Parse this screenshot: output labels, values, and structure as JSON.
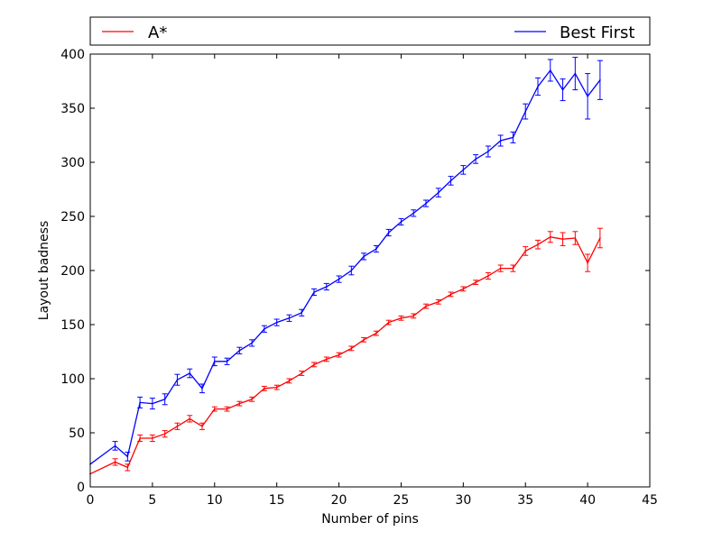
{
  "chart_data": {
    "type": "line",
    "title": "",
    "xlabel": "Number of pins",
    "ylabel": "Layout badness",
    "xlim": [
      0,
      45
    ],
    "ylim": [
      0,
      400
    ],
    "xticks": [
      "0",
      "5",
      "10",
      "15",
      "20",
      "25",
      "30",
      "35",
      "40",
      "45"
    ],
    "yticks": [
      "0",
      "50",
      "100",
      "150",
      "200",
      "250",
      "300",
      "350",
      "400"
    ],
    "grid": false,
    "legend_placement": "top, outside plot",
    "series": [
      {
        "name": "A*",
        "color": "#ff0000",
        "x": [
          0,
          2,
          3,
          4,
          5,
          6,
          7,
          8,
          9,
          10,
          11,
          12,
          13,
          14,
          15,
          16,
          17,
          18,
          19,
          20,
          21,
          22,
          23,
          24,
          25,
          26,
          27,
          28,
          29,
          30,
          31,
          32,
          33,
          34,
          35,
          36,
          37,
          38,
          39,
          40,
          41
        ],
        "y": [
          12,
          23,
          18,
          45,
          45,
          49,
          56,
          63,
          56,
          72,
          72,
          77,
          81,
          91,
          92,
          98,
          105,
          113,
          118,
          122,
          128,
          136,
          142,
          152,
          156,
          158,
          167,
          171,
          178,
          183,
          189,
          195,
          202,
          202,
          218,
          224,
          231,
          229,
          230,
          207,
          230
        ],
        "err": [
          0,
          3,
          3,
          3,
          3,
          3,
          3,
          3,
          3,
          2,
          2,
          2,
          2,
          2,
          2,
          2,
          2,
          2,
          2,
          2,
          2,
          2,
          2,
          2,
          2,
          2,
          2,
          2,
          2,
          2,
          2,
          3,
          3,
          3,
          4,
          4,
          5,
          6,
          6,
          8,
          9
        ]
      },
      {
        "name": "Best First",
        "color": "#0000ff",
        "x": [
          0,
          2,
          3,
          4,
          5,
          6,
          7,
          8,
          9,
          10,
          11,
          12,
          13,
          14,
          15,
          16,
          17,
          18,
          19,
          20,
          21,
          22,
          23,
          24,
          25,
          26,
          27,
          28,
          29,
          30,
          31,
          32,
          33,
          34,
          35,
          36,
          37,
          38,
          39,
          40,
          41
        ],
        "y": [
          21,
          38,
          28,
          78,
          77,
          81,
          99,
          105,
          91,
          116,
          116,
          126,
          133,
          146,
          152,
          156,
          161,
          180,
          185,
          192,
          200,
          213,
          220,
          235,
          245,
          253,
          262,
          272,
          283,
          293,
          303,
          310,
          320,
          323,
          347,
          370,
          385,
          367,
          382,
          361,
          376
        ],
        "err": [
          0,
          4,
          4,
          5,
          5,
          5,
          5,
          4,
          4,
          4,
          3,
          3,
          3,
          3,
          3,
          3,
          3,
          3,
          3,
          3,
          4,
          3,
          3,
          3,
          3,
          3,
          3,
          4,
          4,
          4,
          4,
          5,
          5,
          5,
          7,
          8,
          10,
          10,
          15,
          21,
          18
        ]
      }
    ]
  }
}
